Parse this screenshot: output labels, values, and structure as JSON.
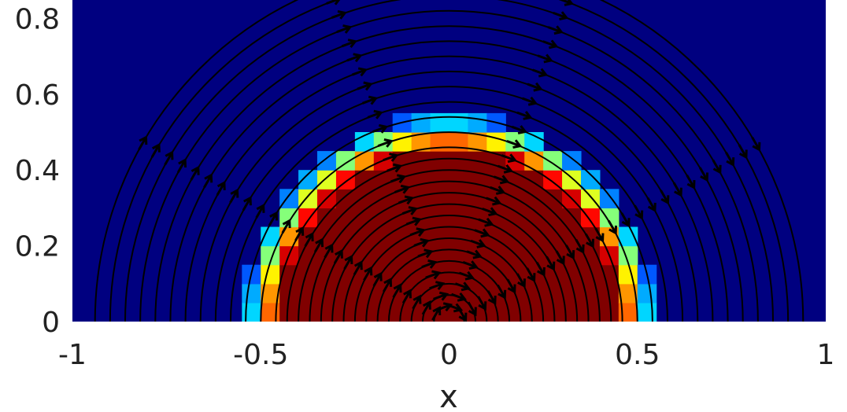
{
  "chart_data": {
    "type": "heatmap",
    "title": "",
    "xlabel": "x",
    "ylabel": "",
    "xlim": [
      -1,
      1
    ],
    "ylim": [
      0,
      0.85
    ],
    "x_ticks": [
      -1,
      -0.5,
      0,
      0.5,
      1
    ],
    "x_tick_labels": [
      "-1",
      "-0.5",
      "0",
      "0.5",
      "1"
    ],
    "y_ticks": [
      0,
      0.2,
      0.4,
      0.6,
      0.8
    ],
    "y_tick_labels": [
      "0",
      "0.2",
      "0.4",
      "0.6",
      "0.8"
    ],
    "colormap": "jet",
    "grid": false,
    "field": {
      "description_of_region": "semicircular high-value region of radius 0.5 centered at (0,0), smeared interface out to about 0.55",
      "center": [
        0,
        0
      ],
      "radius": 0.5,
      "interface_width": 0.05,
      "cell_size": 0.05,
      "inside_value": 1.0,
      "outside_value": 0.0
    },
    "streamlines": {
      "center": [
        0,
        0
      ],
      "radii": [
        0.04,
        0.07,
        0.1,
        0.13,
        0.16,
        0.19,
        0.22,
        0.25,
        0.28,
        0.31,
        0.34,
        0.37,
        0.4,
        0.43,
        0.46,
        0.5,
        0.54,
        0.58,
        0.62,
        0.66,
        0.7,
        0.74,
        0.78,
        0.82,
        0.86,
        0.9,
        0.94
      ],
      "direction": "clockwise",
      "color": "#000000"
    }
  }
}
